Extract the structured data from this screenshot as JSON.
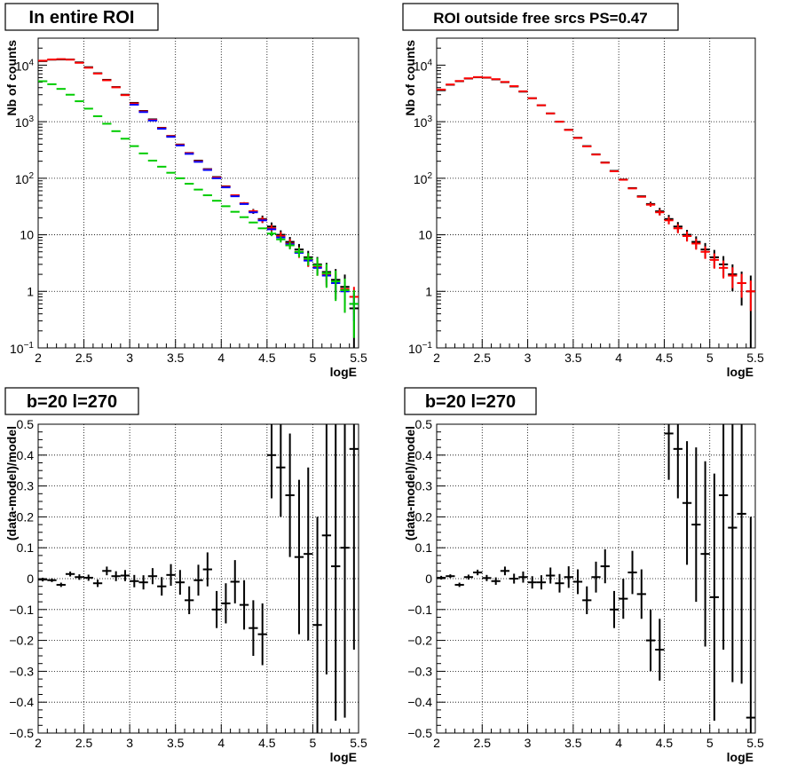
{
  "colors": {
    "data": "#000000",
    "model": "#ff0000",
    "component_blue": "#0000ff",
    "component_green": "#00cc00"
  },
  "chart_data": [
    {
      "type": "scatter",
      "title": "In entire ROI",
      "xlabel": "logE",
      "ylabel": "Nb of counts",
      "ylog": true,
      "xlim": [
        2,
        5.5
      ],
      "ylim": [
        0.1,
        30000
      ],
      "xticks": [
        "2",
        "2.5",
        "3",
        "3.5",
        "4",
        "4.5",
        "5",
        "5.5"
      ],
      "yticks": [
        {
          "value": 0.1,
          "label": "10^-1"
        },
        {
          "value": 1,
          "label": "1"
        },
        {
          "value": 10,
          "label": "10"
        },
        {
          "value": 100,
          "label": "10^2"
        },
        {
          "value": 1000,
          "label": "10^3"
        },
        {
          "value": 10000,
          "label": "10^4"
        }
      ],
      "grid": true,
      "series": [
        {
          "color": "#000000",
          "x": [
            2.05,
            2.15,
            2.25,
            2.35,
            2.45,
            2.55,
            2.65,
            2.75,
            2.85,
            2.95,
            3.05,
            3.15,
            3.25,
            3.35,
            3.45,
            3.55,
            3.65,
            3.75,
            3.85,
            3.95,
            4.05,
            4.15,
            4.25,
            4.35,
            4.45,
            4.55,
            4.65,
            4.75,
            4.85,
            4.95,
            5.05,
            5.15,
            5.25,
            5.35,
            5.45
          ],
          "y": [
            11800,
            12500,
            12600,
            12600,
            11200,
            9200,
            7200,
            5500,
            4100,
            3000,
            2150,
            1550,
            1100,
            780,
            560,
            395,
            280,
            205,
            145,
            105,
            72,
            50,
            36,
            26,
            19,
            14,
            10,
            7.5,
            5.5,
            4,
            3,
            2.2,
            1.6,
            1.2,
            0.5
          ],
          "err": [
            0,
            0,
            0,
            0,
            0,
            0,
            0,
            0,
            0,
            0,
            0,
            0,
            0,
            0,
            0,
            0,
            0,
            0,
            0,
            0,
            0,
            0,
            0,
            0.1,
            0.15,
            0.18,
            0.2,
            0.22,
            0.25,
            0.3,
            0.35,
            0.45,
            0.55,
            0.65,
            0.9
          ]
        },
        {
          "color": "#ff0000",
          "x": [
            2.05,
            2.15,
            2.25,
            2.35,
            2.45,
            2.55,
            2.65,
            2.75,
            2.85,
            2.95,
            3.05,
            3.15,
            3.25,
            3.35,
            3.45,
            3.55,
            3.65,
            3.75,
            3.85,
            3.95,
            4.05,
            4.15,
            4.25,
            4.35,
            4.45,
            4.55,
            4.65,
            4.75,
            4.85,
            4.95,
            5.05,
            5.15,
            5.25,
            5.35,
            5.45
          ],
          "y": [
            12000,
            12600,
            12800,
            12500,
            11000,
            9000,
            7100,
            5400,
            4050,
            2950,
            2100,
            1520,
            1080,
            770,
            555,
            390,
            278,
            200,
            143,
            103,
            71,
            50,
            36,
            26,
            18.5,
            13,
            9.5,
            7,
            5,
            3.6,
            2.7,
            2,
            1.5,
            1.1,
            0.8
          ],
          "err": [
            0,
            0,
            0,
            0,
            0,
            0,
            0,
            0,
            0,
            0,
            0,
            0,
            0,
            0,
            0,
            0,
            0,
            0,
            0,
            0,
            0,
            0,
            0.05,
            0.08,
            0.12,
            0.15,
            0.18,
            0.2,
            0.22,
            0.25,
            0.3,
            0.35,
            0.4,
            0.45,
            0.5
          ]
        },
        {
          "color": "#0000ff",
          "x": [
            3.05,
            3.15,
            3.25,
            3.35,
            3.45,
            3.55,
            3.65,
            3.75,
            3.85,
            3.95,
            4.05,
            4.15,
            4.25,
            4.35,
            4.45,
            4.55,
            4.65,
            4.75,
            4.85,
            4.95,
            5.05,
            5.15,
            5.25,
            5.35,
            5.45
          ],
          "y": [
            2000,
            1480,
            1050,
            750,
            540,
            380,
            270,
            195,
            140,
            100,
            69,
            48,
            35,
            25,
            18,
            12.5,
            9,
            6.8,
            4.8,
            3.5,
            2.6,
            1.9,
            1.4,
            1.0,
            0.6
          ],
          "err": [
            0,
            0,
            0,
            0,
            0,
            0,
            0,
            0,
            0,
            0,
            0,
            0,
            0,
            0,
            0,
            0,
            0,
            0,
            0,
            0,
            0.2,
            0.25,
            0.35,
            0.45,
            0.5
          ]
        },
        {
          "color": "#00cc00",
          "x": [
            2.05,
            2.15,
            2.25,
            2.35,
            2.45,
            2.55,
            2.65,
            2.75,
            2.85,
            2.95,
            3.05,
            3.15,
            3.25,
            3.35,
            3.45,
            3.55,
            3.65,
            3.75,
            3.85,
            3.95,
            4.05,
            4.15,
            4.25,
            4.35,
            4.45,
            4.55,
            4.65,
            4.75,
            4.85,
            4.95,
            5.05,
            5.15,
            5.25,
            5.35,
            5.45
          ],
          "y": [
            5200,
            4600,
            3800,
            3000,
            2300,
            1700,
            1250,
            920,
            680,
            500,
            370,
            275,
            205,
            160,
            125,
            100,
            80,
            63,
            50,
            40,
            32,
            25.5,
            20.5,
            16.5,
            13,
            10.5,
            8.3,
            6.5,
            5,
            3.8,
            2.9,
            2.1,
            1.5,
            1.05,
            0.6
          ],
          "err": [
            0,
            0,
            0,
            0,
            0,
            0,
            0,
            0,
            0,
            0,
            0,
            0,
            0,
            0,
            0,
            0,
            0,
            0,
            0,
            0,
            0,
            0,
            0,
            0,
            0,
            0.1,
            0.12,
            0.15,
            0.2,
            0.25,
            0.35,
            0.45,
            0.55,
            0.6,
            0.75
          ]
        }
      ]
    },
    {
      "type": "scatter",
      "title": "ROI outside free srcs PS=0.47",
      "xlabel": "logE",
      "ylabel": "Nb of counts",
      "ylog": true,
      "xlim": [
        2,
        5.5
      ],
      "ylim": [
        0.1,
        30000
      ],
      "xticks": [
        "2",
        "2.5",
        "3",
        "3.5",
        "4",
        "4.5",
        "5",
        "5.5"
      ],
      "yticks": [
        {
          "value": 0.1,
          "label": "10^-1"
        },
        {
          "value": 1,
          "label": "1"
        },
        {
          "value": 10,
          "label": "10"
        },
        {
          "value": 100,
          "label": "10^2"
        },
        {
          "value": 1000,
          "label": "10^3"
        },
        {
          "value": 10000,
          "label": "10^4"
        }
      ],
      "grid": true,
      "series": [
        {
          "color": "#000000",
          "x": [
            2.05,
            2.15,
            2.25,
            2.35,
            2.45,
            2.55,
            2.65,
            2.75,
            2.85,
            2.95,
            3.05,
            3.15,
            3.25,
            3.35,
            3.45,
            3.55,
            3.65,
            3.75,
            3.85,
            3.95,
            4.05,
            4.15,
            4.25,
            4.35,
            4.45,
            4.55,
            4.65,
            4.75,
            4.85,
            4.95,
            5.05,
            5.15,
            5.25,
            5.35,
            5.45
          ],
          "y": [
            3600,
            4500,
            5200,
            5800,
            6100,
            6000,
            5600,
            5000,
            4200,
            3400,
            2600,
            1950,
            1400,
            1000,
            720,
            520,
            370,
            265,
            190,
            135,
            95,
            67,
            48,
            35,
            26,
            19,
            14,
            10,
            7.5,
            5.5,
            4,
            3,
            2,
            1.4,
            1.0
          ],
          "err": [
            0,
            0,
            0,
            0,
            0,
            0,
            0,
            0,
            0,
            0,
            0,
            0,
            0,
            0,
            0,
            0,
            0,
            0,
            0,
            0,
            0,
            0,
            0,
            0.1,
            0.15,
            0.18,
            0.2,
            0.22,
            0.25,
            0.3,
            0.35,
            0.4,
            0.5,
            0.6,
            0.9
          ]
        },
        {
          "color": "#ff0000",
          "x": [
            2.05,
            2.15,
            2.25,
            2.35,
            2.45,
            2.55,
            2.65,
            2.75,
            2.85,
            2.95,
            3.05,
            3.15,
            3.25,
            3.35,
            3.45,
            3.55,
            3.65,
            3.75,
            3.85,
            3.95,
            4.05,
            4.15,
            4.25,
            4.35,
            4.45,
            4.55,
            4.65,
            4.75,
            4.85,
            4.95,
            5.05,
            5.15,
            5.25,
            5.35,
            5.45
          ],
          "y": [
            3700,
            4550,
            5250,
            5850,
            6150,
            6050,
            5650,
            5050,
            4250,
            3450,
            2600,
            1950,
            1400,
            1000,
            715,
            515,
            365,
            262,
            188,
            133,
            94,
            66,
            47,
            34,
            25,
            18,
            13,
            9.5,
            7,
            5,
            3.6,
            2.6,
            1.9,
            1.4,
            1.0
          ],
          "err": [
            0,
            0,
            0,
            0,
            0,
            0,
            0,
            0,
            0,
            0,
            0,
            0,
            0,
            0,
            0,
            0,
            0,
            0,
            0,
            0,
            0,
            0,
            0,
            0.08,
            0.12,
            0.15,
            0.18,
            0.2,
            0.22,
            0.25,
            0.3,
            0.35,
            0.4,
            0.45,
            0.55
          ]
        }
      ]
    },
    {
      "type": "scatter",
      "title": "b=20 l=270",
      "xlabel": "logE",
      "ylabel": "(data-model)/model",
      "ylog": false,
      "xlim": [
        2,
        5.5
      ],
      "ylim": [
        -0.5,
        0.5
      ],
      "xticks": [
        "2",
        "2.5",
        "3",
        "3.5",
        "4",
        "4.5",
        "5",
        "5.5"
      ],
      "yticks": [
        {
          "value": -0.5,
          "label": "-0.5"
        },
        {
          "value": -0.4,
          "label": "-0.4"
        },
        {
          "value": -0.3,
          "label": "-0.3"
        },
        {
          "value": -0.2,
          "label": "-0.2"
        },
        {
          "value": -0.1,
          "label": "-0.1"
        },
        {
          "value": 0,
          "label": "0"
        },
        {
          "value": 0.1,
          "label": "0.1"
        },
        {
          "value": 0.2,
          "label": "0.2"
        },
        {
          "value": 0.3,
          "label": "0.3"
        },
        {
          "value": 0.4,
          "label": "0.4"
        },
        {
          "value": 0.5,
          "label": "0.5"
        }
      ],
      "grid": true,
      "series": [
        {
          "color": "#000000",
          "x": [
            2.05,
            2.15,
            2.25,
            2.35,
            2.45,
            2.55,
            2.65,
            2.75,
            2.85,
            2.95,
            3.05,
            3.15,
            3.25,
            3.35,
            3.45,
            3.55,
            3.65,
            3.75,
            3.85,
            3.95,
            4.05,
            4.15,
            4.25,
            4.35,
            4.45,
            4.55,
            4.65,
            4.75,
            4.85,
            4.95,
            5.05,
            5.15,
            5.25,
            5.35,
            5.45
          ],
          "y": [
            -0.003,
            -0.005,
            -0.02,
            0.015,
            0.005,
            0.003,
            -0.015,
            0.025,
            0.008,
            0.01,
            -0.008,
            -0.012,
            0.008,
            -0.025,
            0.012,
            -0.012,
            -0.07,
            -0.005,
            0.03,
            -0.1,
            -0.08,
            -0.01,
            -0.085,
            -0.16,
            -0.18,
            0.4,
            0.36,
            0.27,
            0.07,
            0.08,
            -0.15,
            0.14,
            0.04,
            0.1,
            0.42
          ],
          "err": [
            0.006,
            0.006,
            0.007,
            0.008,
            0.009,
            0.01,
            0.012,
            0.014,
            0.016,
            0.018,
            0.02,
            0.023,
            0.026,
            0.03,
            0.035,
            0.04,
            0.045,
            0.05,
            0.055,
            0.06,
            0.065,
            0.07,
            0.08,
            0.09,
            0.1,
            0.14,
            0.16,
            0.2,
            0.25,
            0.28,
            0.35,
            0.45,
            0.5,
            0.55,
            0.65
          ]
        }
      ]
    },
    {
      "type": "scatter",
      "title": "b=20 l=270",
      "xlabel": "logE",
      "ylabel": "(data-model)/model",
      "ylog": false,
      "xlim": [
        2,
        5.5
      ],
      "ylim": [
        -0.5,
        0.5
      ],
      "xticks": [
        "2",
        "2.5",
        "3",
        "3.5",
        "4",
        "4.5",
        "5",
        "5.5"
      ],
      "yticks": [
        {
          "value": -0.5,
          "label": "-0.5"
        },
        {
          "value": -0.4,
          "label": "-0.4"
        },
        {
          "value": -0.3,
          "label": "-0.3"
        },
        {
          "value": -0.2,
          "label": "-0.2"
        },
        {
          "value": -0.1,
          "label": "-0.1"
        },
        {
          "value": 0,
          "label": "0"
        },
        {
          "value": 0.1,
          "label": "0.1"
        },
        {
          "value": 0.2,
          "label": "0.2"
        },
        {
          "value": 0.3,
          "label": "0.3"
        },
        {
          "value": 0.4,
          "label": "0.4"
        },
        {
          "value": 0.5,
          "label": "0.5"
        }
      ],
      "grid": true,
      "series": [
        {
          "color": "#000000",
          "x": [
            2.05,
            2.15,
            2.25,
            2.35,
            2.45,
            2.55,
            2.65,
            2.75,
            2.85,
            2.95,
            3.05,
            3.15,
            3.25,
            3.35,
            3.45,
            3.55,
            3.65,
            3.75,
            3.85,
            3.95,
            4.05,
            4.15,
            4.25,
            4.35,
            4.45,
            4.55,
            4.65,
            4.75,
            4.85,
            4.95,
            5.05,
            5.15,
            5.25,
            5.35,
            5.45
          ],
          "y": [
            0.003,
            0.008,
            -0.02,
            0.005,
            0.02,
            0.002,
            -0.008,
            0.025,
            0.0,
            0.005,
            -0.012,
            -0.012,
            0.01,
            -0.015,
            0.005,
            -0.01,
            -0.07,
            0.005,
            0.04,
            -0.1,
            -0.065,
            0.02,
            -0.05,
            -0.2,
            -0.23,
            0.47,
            0.42,
            0.245,
            0.175,
            0.08,
            -0.06,
            0.27,
            0.165,
            0.21,
            -0.45
          ],
          "err": [
            0.006,
            0.006,
            0.007,
            0.008,
            0.009,
            0.01,
            0.012,
            0.014,
            0.016,
            0.018,
            0.02,
            0.023,
            0.026,
            0.03,
            0.035,
            0.04,
            0.045,
            0.05,
            0.055,
            0.06,
            0.065,
            0.07,
            0.08,
            0.1,
            0.1,
            0.15,
            0.16,
            0.2,
            0.25,
            0.3,
            0.4,
            0.5,
            0.5,
            0.55,
            0.65
          ]
        }
      ]
    }
  ]
}
